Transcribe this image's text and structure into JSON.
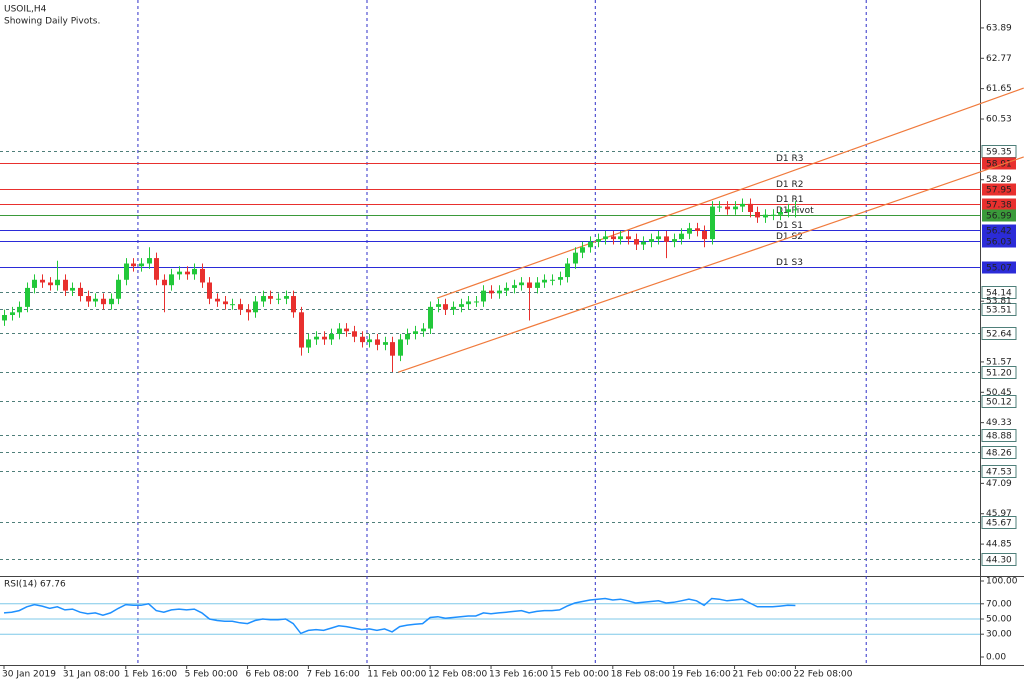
{
  "chart_data": {
    "type": "candlestick",
    "title": "USOIL,H4",
    "subtitle": "Showing Daily Pivots.",
    "categories": [
      "30 Jan 2019",
      null,
      null,
      null,
      null,
      null,
      null,
      null,
      "31 Jan 08:00",
      null,
      null,
      null,
      null,
      null,
      null,
      null,
      "1 Feb 16:00",
      null,
      null,
      null,
      null,
      null,
      null,
      null,
      "5 Feb 00:00",
      null,
      null,
      null,
      null,
      null,
      null,
      null,
      "6 Feb 08:00",
      null,
      null,
      null,
      null,
      null,
      null,
      null,
      "7 Feb 16:00",
      null,
      null,
      null,
      null,
      null,
      null,
      null,
      "11 Feb 00:00",
      null,
      null,
      null,
      null,
      null,
      null,
      null,
      "12 Feb 08:00",
      null,
      null,
      null,
      null,
      null,
      null,
      null,
      "13 Feb 16:00",
      null,
      null,
      null,
      null,
      null,
      null,
      null,
      "15 Feb 00:00",
      null,
      null,
      null,
      null,
      null,
      null,
      null,
      "18 Feb 08:00",
      null,
      null,
      null,
      null,
      null,
      null,
      null,
      "19 Feb 16:00",
      null,
      null,
      null,
      null,
      null,
      null,
      null,
      "21 Feb 00:00",
      null,
      null,
      null,
      null,
      null,
      null,
      null,
      "22 Feb 08:00"
    ],
    "open": [
      53.1,
      53.3,
      53.4,
      53.6,
      54.3,
      54.6,
      54.5,
      54.4,
      54.6,
      54.2,
      54.3,
      54.0,
      53.8,
      53.9,
      53.7,
      53.9,
      54.6,
      55.2,
      55.1,
      55.2,
      55.4,
      54.6,
      54.4,
      54.8,
      54.9,
      54.8,
      55.0,
      54.5,
      53.9,
      53.8,
      53.7,
      53.7,
      53.5,
      53.4,
      53.8,
      54.0,
      53.9,
      53.9,
      54.0,
      53.4,
      52.1,
      52.4,
      52.5,
      52.4,
      52.6,
      52.8,
      52.7,
      52.5,
      52.3,
      52.4,
      52.2,
      52.3,
      51.8,
      52.4,
      52.6,
      52.7,
      52.8,
      53.6,
      53.7,
      53.5,
      53.6,
      53.7,
      53.8,
      53.8,
      54.2,
      54.1,
      54.2,
      54.3,
      54.4,
      54.5,
      54.3,
      54.5,
      54.6,
      54.6,
      54.7,
      55.2,
      55.6,
      55.8,
      56.0,
      56.1,
      56.2,
      56.1,
      56.2,
      56.1,
      55.9,
      56.0,
      56.1,
      56.2,
      56.0,
      56.1,
      56.3,
      56.5,
      56.4,
      56.1,
      57.3,
      57.3,
      57.2,
      57.3,
      57.4,
      57.1,
      56.9,
      57.0,
      57.0,
      57.1,
      57.2
    ],
    "high": [
      53.5,
      53.6,
      53.8,
      54.5,
      54.8,
      54.8,
      54.7,
      55.3,
      54.8,
      54.5,
      54.5,
      54.2,
      54.1,
      54.1,
      54.1,
      54.8,
      55.4,
      55.4,
      55.4,
      55.8,
      55.6,
      54.8,
      55.0,
      55.1,
      55.1,
      55.2,
      55.2,
      54.7,
      54.1,
      54.0,
      53.9,
      53.9,
      53.7,
      54.0,
      54.2,
      54.2,
      54.1,
      54.2,
      54.2,
      53.6,
      52.6,
      52.7,
      52.7,
      52.8,
      53.0,
      53.0,
      52.9,
      52.7,
      52.6,
      52.6,
      52.5,
      52.5,
      52.6,
      52.8,
      52.9,
      53.0,
      53.8,
      53.9,
      53.9,
      53.8,
      53.9,
      54.0,
      54.0,
      54.4,
      54.4,
      54.4,
      54.5,
      54.6,
      54.7,
      54.7,
      54.7,
      54.8,
      54.8,
      54.9,
      55.4,
      55.8,
      56.0,
      56.2,
      56.3,
      56.4,
      56.4,
      56.4,
      56.4,
      56.3,
      56.2,
      56.3,
      56.4,
      56.4,
      56.3,
      56.5,
      56.7,
      56.7,
      56.6,
      57.5,
      57.5,
      57.5,
      57.5,
      57.6,
      57.6,
      57.3,
      57.2,
      57.2,
      57.3,
      57.4,
      57.5
    ],
    "low": [
      52.9,
      53.1,
      53.2,
      53.4,
      54.1,
      54.3,
      54.2,
      54.2,
      54.0,
      54.0,
      53.8,
      53.6,
      53.6,
      53.5,
      53.5,
      53.7,
      54.4,
      54.9,
      54.9,
      55.0,
      54.4,
      53.4,
      54.2,
      54.6,
      54.6,
      54.6,
      54.3,
      53.7,
      53.6,
      53.5,
      53.5,
      53.3,
      53.1,
      53.2,
      53.6,
      53.7,
      53.7,
      53.7,
      53.2,
      51.8,
      51.9,
      52.2,
      52.2,
      52.2,
      52.4,
      52.5,
      52.3,
      52.1,
      52.1,
      52.0,
      52.0,
      51.2,
      51.6,
      52.2,
      52.4,
      52.5,
      52.6,
      53.4,
      53.3,
      53.3,
      53.4,
      53.5,
      53.6,
      53.6,
      53.9,
      53.9,
      54.0,
      54.1,
      54.2,
      53.1,
      54.1,
      54.3,
      54.4,
      54.4,
      54.5,
      55.0,
      55.4,
      55.6,
      55.8,
      55.9,
      55.9,
      55.9,
      55.9,
      55.7,
      55.7,
      55.8,
      55.9,
      55.4,
      55.8,
      55.9,
      56.1,
      56.2,
      55.8,
      55.9,
      57.1,
      57.0,
      57.0,
      57.1,
      56.9,
      56.7,
      56.7,
      56.8,
      56.8,
      56.9,
      56.9
    ],
    "close": [
      53.3,
      53.4,
      53.6,
      54.3,
      54.6,
      54.5,
      54.4,
      54.6,
      54.2,
      54.3,
      54.0,
      53.8,
      53.9,
      53.7,
      53.9,
      54.6,
      55.2,
      55.1,
      55.2,
      55.4,
      54.6,
      54.4,
      54.8,
      54.9,
      54.8,
      55.0,
      54.5,
      53.9,
      53.8,
      53.7,
      53.7,
      53.5,
      53.4,
      53.8,
      54.0,
      53.9,
      53.9,
      54.0,
      53.4,
      52.1,
      52.4,
      52.5,
      52.4,
      52.6,
      52.8,
      52.7,
      52.5,
      52.3,
      52.4,
      52.2,
      52.3,
      51.8,
      52.4,
      52.6,
      52.7,
      52.8,
      53.6,
      53.7,
      53.5,
      53.6,
      53.7,
      53.8,
      53.8,
      54.2,
      54.1,
      54.2,
      54.3,
      54.4,
      54.5,
      54.3,
      54.5,
      54.6,
      54.6,
      54.7,
      55.2,
      55.6,
      55.8,
      56.0,
      56.1,
      56.2,
      56.1,
      56.2,
      56.1,
      55.9,
      56.0,
      56.1,
      56.2,
      56.0,
      56.1,
      56.3,
      56.5,
      56.4,
      56.1,
      57.3,
      57.3,
      57.2,
      57.3,
      57.4,
      57.1,
      56.9,
      57.0,
      57.0,
      57.1,
      57.2,
      57.2
    ],
    "up_color": "#22c83a",
    "down_color": "#e8302e",
    "ylim": [
      43.71,
      64.92
    ],
    "yticks": [
      63.89,
      62.77,
      61.65,
      60.53,
      58.29,
      53.81,
      51.57,
      50.45,
      49.33,
      47.09,
      45.97,
      44.85
    ],
    "levels": [
      59.35,
      54.14,
      53.51,
      52.64,
      {
        "value": 51.2,
        "label": "51.20"
      },
      50.12,
      48.88,
      48.26,
      47.53,
      45.67,
      {
        "value": 44.3,
        "label": "44.30"
      }
    ],
    "level_color": "#4f7f7a",
    "pivots": [
      {
        "name": "D1 R3",
        "value": 58.91,
        "color": "#e8302e"
      },
      {
        "name": "D1 R2",
        "value": 57.95,
        "color": "#e8302e"
      },
      {
        "name": "D1 R1",
        "value": 57.38,
        "color": "#e8302e"
      },
      {
        "name": "D1 Pivot",
        "value": 56.99,
        "color": "#3a9a3a"
      },
      {
        "name": "D1 S1",
        "value": 56.42,
        "color": "#2b2bd8"
      },
      {
        "name": "D1 S2",
        "value": 56.03,
        "color": "#2b2bd8"
      },
      {
        "name": "D1 S3",
        "value": 55.07,
        "color": "#2b2bd8"
      }
    ],
    "channel_color": "#f07a3c",
    "channel": [
      {
        "x": [
          56.9,
          134
        ],
        "values": [
          53.92,
          61.67
        ]
      },
      {
        "x": [
          51.8,
          134
        ],
        "values": [
          51.19,
          59.13
        ]
      }
    ],
    "xgrid": [
      17.6,
      47.7,
      77.7,
      113.3
    ],
    "rsi": {
      "title": "RSI(14) 67.76",
      "color": "#1e90ff",
      "values": [
        58,
        59,
        61,
        66,
        69,
        67,
        64,
        66,
        62,
        63,
        59,
        57,
        58,
        55,
        58,
        64,
        69,
        68,
        68,
        70,
        61,
        59,
        62,
        63,
        62,
        63,
        58,
        50,
        48,
        47,
        47,
        45,
        44,
        48,
        50,
        49,
        49,
        50,
        44,
        31,
        35,
        36,
        35,
        38,
        41,
        40,
        38,
        36,
        37,
        35,
        37,
        33,
        40,
        42,
        43,
        44,
        52,
        53,
        51,
        52,
        53,
        54,
        54,
        58,
        57,
        58,
        59,
        60,
        61,
        58,
        60,
        61,
        61,
        62,
        67,
        71,
        73,
        75,
        76,
        77,
        75,
        76,
        74,
        71,
        72,
        73,
        74,
        71,
        72,
        74,
        76,
        74,
        68,
        77,
        76,
        74,
        75,
        76,
        71,
        66,
        66,
        66,
        67,
        68,
        67.76
      ],
      "ylim": [
        0,
        100
      ],
      "yticks": [
        {
          "value": 100,
          "label": "100.00"
        },
        {
          "value": 70,
          "label": "70.00"
        },
        {
          "value": 50,
          "label": "50.00"
        },
        {
          "value": 30,
          "label": "30.00"
        },
        {
          "value": 0,
          "label": "0.00"
        }
      ],
      "levels": [
        70,
        50,
        30
      ],
      "level_color": "#7fc8e8"
    }
  }
}
